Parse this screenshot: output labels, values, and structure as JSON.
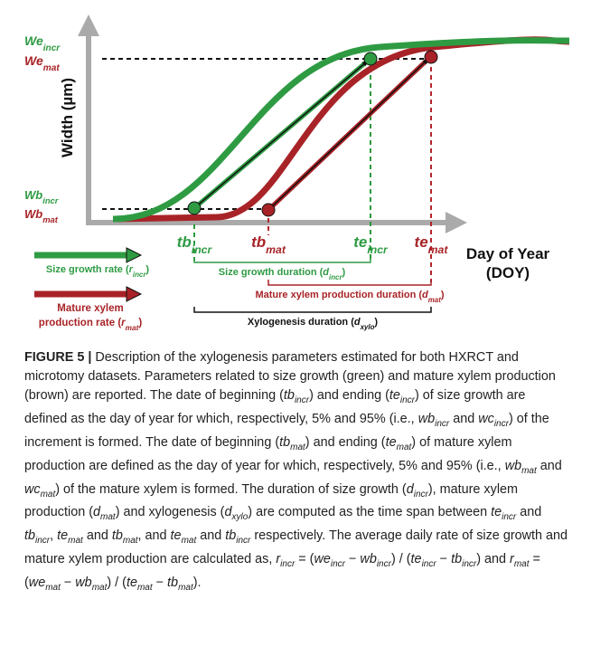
{
  "figure": {
    "labels": {
      "we_incr": [
        [
          "i",
          "We"
        ],
        [
          "s",
          "incr"
        ]
      ],
      "we_mat": [
        [
          "i",
          "We"
        ],
        [
          "s",
          "mat"
        ]
      ],
      "wb_incr": [
        [
          "i",
          "Wb"
        ],
        [
          "s",
          "incr"
        ]
      ],
      "wb_mat": [
        [
          "i",
          "Wb"
        ],
        [
          "s",
          "mat"
        ]
      ],
      "y_axis": [
        [
          "b",
          "Width (µm)"
        ]
      ],
      "tb_incr": [
        [
          "i",
          "tb"
        ],
        [
          "s",
          "incr"
        ]
      ],
      "tb_mat": [
        [
          "i",
          "tb"
        ],
        [
          "s",
          "mat"
        ]
      ],
      "te_incr": [
        [
          "i",
          "te"
        ],
        [
          "s",
          "incr"
        ]
      ],
      "te_mat": [
        [
          "i",
          "te"
        ],
        [
          "s",
          "mat"
        ]
      ],
      "x_axis_1": [
        [
          "b",
          "Day of Year"
        ]
      ],
      "x_axis_2": [
        [
          "b",
          "(DOY)"
        ]
      ],
      "r_incr": [
        [
          "p",
          "Size growth rate ("
        ],
        [
          "i",
          "r"
        ],
        [
          "s",
          "incr"
        ],
        [
          "p",
          ")"
        ]
      ],
      "r_mat_1": [
        [
          "p",
          "Mature xylem"
        ]
      ],
      "r_mat_2": [
        [
          "p",
          "production rate ("
        ],
        [
          "i",
          "r"
        ],
        [
          "s",
          "mat"
        ],
        [
          "p",
          ")"
        ]
      ],
      "d_incr": [
        [
          "p",
          "Size growth duration ("
        ],
        [
          "i",
          "d"
        ],
        [
          "s",
          "incr"
        ],
        [
          "p",
          ")"
        ]
      ],
      "d_mat": [
        [
          "p",
          "Mature xylem production duration ("
        ],
        [
          "i",
          "d"
        ],
        [
          "s",
          "mat"
        ],
        [
          "p",
          ")"
        ]
      ],
      "d_xylo": [
        [
          "p",
          "Xylogenesis duration ("
        ],
        [
          "i",
          "d"
        ],
        [
          "s",
          "xylo"
        ],
        [
          "p",
          ")"
        ]
      ]
    }
  },
  "caption": {
    "runs": [
      [
        "b",
        "FIGURE 5 |"
      ],
      [
        "p",
        " Description of the xylogenesis parameters estimated for both HXRCT and microtomy datasets. Parameters related to size growth (green) and mature xylem production (brown) are reported. The date of beginning ("
      ],
      [
        "i",
        "tb"
      ],
      [
        "s",
        "incr"
      ],
      [
        "p",
        ") and ending ("
      ],
      [
        "i",
        "te"
      ],
      [
        "s",
        "incr"
      ],
      [
        "p",
        ") of size growth are defined as the day of year for which, respectively, 5% and 95% (i.e., "
      ],
      [
        "i",
        "wb"
      ],
      [
        "s",
        "incr"
      ],
      [
        "p",
        " and "
      ],
      [
        "i",
        "wc"
      ],
      [
        "s",
        "incr"
      ],
      [
        "p",
        ") of the increment is formed. The date of beginning ("
      ],
      [
        "i",
        "tb"
      ],
      [
        "s",
        "mat"
      ],
      [
        "p",
        ") and ending ("
      ],
      [
        "i",
        "te"
      ],
      [
        "s",
        "mat"
      ],
      [
        "p",
        ") of mature xylem production are defined as the day of year for which, respectively, 5% and 95% (i.e., "
      ],
      [
        "i",
        "wb"
      ],
      [
        "s",
        "mat"
      ],
      [
        "p",
        " and "
      ],
      [
        "i",
        "wc"
      ],
      [
        "s",
        "mat"
      ],
      [
        "p",
        ") of the mature xylem is formed. The duration of size growth ("
      ],
      [
        "i",
        "d"
      ],
      [
        "s",
        "incr"
      ],
      [
        "p",
        "), mature xylem production ("
      ],
      [
        "i",
        "d"
      ],
      [
        "s",
        "mat"
      ],
      [
        "p",
        ") and xylogenesis ("
      ],
      [
        "i",
        "d"
      ],
      [
        "s",
        "xylo"
      ],
      [
        "p",
        ") are computed as the time span between "
      ],
      [
        "i",
        "te"
      ],
      [
        "s",
        "incr"
      ],
      [
        "p",
        " and "
      ],
      [
        "i",
        "tb"
      ],
      [
        "s",
        "incr"
      ],
      [
        "p",
        ", "
      ],
      [
        "i",
        "te"
      ],
      [
        "s",
        "mat"
      ],
      [
        "p",
        " and "
      ],
      [
        "i",
        "tb"
      ],
      [
        "s",
        "mat"
      ],
      [
        "p",
        ", and "
      ],
      [
        "i",
        "te"
      ],
      [
        "s",
        "mat"
      ],
      [
        "p",
        " and "
      ],
      [
        "i",
        "tb"
      ],
      [
        "s",
        "incr"
      ],
      [
        "p",
        " respectively. The average daily rate of size growth and mature xylem production are calculated as, "
      ],
      [
        "i",
        "r"
      ],
      [
        "s",
        "incr"
      ],
      [
        "p",
        " = ("
      ],
      [
        "i",
        "we"
      ],
      [
        "s",
        "incr"
      ],
      [
        "p",
        " − "
      ],
      [
        "i",
        "wb"
      ],
      [
        "s",
        "incr"
      ],
      [
        "p",
        ") / ("
      ],
      [
        "i",
        "te"
      ],
      [
        "s",
        "incr"
      ],
      [
        "p",
        " − "
      ],
      [
        "i",
        "tb"
      ],
      [
        "s",
        "incr"
      ],
      [
        "p",
        ") and "
      ],
      [
        "i",
        "r"
      ],
      [
        "s",
        "mat"
      ],
      [
        "p",
        " = ("
      ],
      [
        "i",
        "we"
      ],
      [
        "s",
        "mat"
      ],
      [
        "p",
        " − "
      ],
      [
        "i",
        "wb"
      ],
      [
        "s",
        "mat"
      ],
      [
        "p",
        ") / ("
      ],
      [
        "i",
        "te"
      ],
      [
        "s",
        "mat"
      ],
      [
        "p",
        " − "
      ],
      [
        "i",
        "tb"
      ],
      [
        "s",
        "mat"
      ],
      [
        "p",
        ")."
      ]
    ]
  }
}
